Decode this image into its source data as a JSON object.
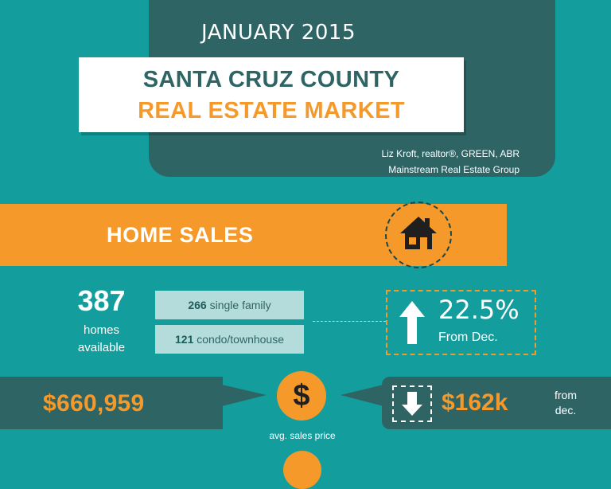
{
  "header": {
    "month": "JANUARY 2015",
    "title_line1": "SANTA CRUZ COUNTY",
    "title_line2": "REAL ESTATE MARKET",
    "author_line1": "Liz Kroft, realtor®, GREEN, ABR",
    "author_line2": "Mainstream Real Estate Group"
  },
  "section": {
    "title": "HOME SALES",
    "icon": "house-icon"
  },
  "inventory": {
    "total": "387",
    "label_line1": "homes",
    "label_line2": "available",
    "single_family_count": "266",
    "single_family_label": " single family",
    "condo_count": "121",
    "condo_label": " condo/townhouse"
  },
  "change": {
    "percent": "22.5%",
    "label": "From Dec.",
    "direction_icon": "up-arrow-icon"
  },
  "price": {
    "avg_price": "$660,959",
    "label": "avg. sales price",
    "icon": "dollar-icon",
    "change_amount": "$162k",
    "change_label_line1": "from",
    "change_label_line2": "dec.",
    "change_icon": "down-arrow-icon"
  },
  "colors": {
    "background": "#139d9d",
    "dark_teal": "#2f6465",
    "orange": "#f59a2a",
    "light_teal": "#b4dcda"
  }
}
